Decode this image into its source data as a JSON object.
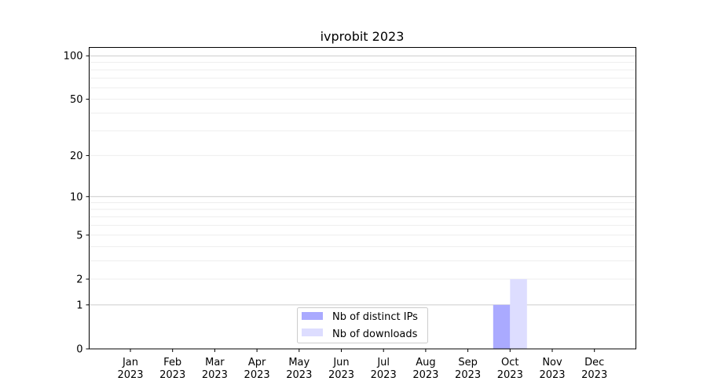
{
  "chart_data": {
    "type": "bar",
    "title": "ivprobit 2023",
    "xlabel": "",
    "ylabel": "",
    "y_scale": "symlog (log of 1+y)",
    "ylim": [
      0,
      116
    ],
    "grid": true,
    "legend_placement": "lower-center",
    "categories": [
      "Jan\n2023",
      "Feb\n2023",
      "Mar\n2023",
      "Apr\n2023",
      "May\n2023",
      "Jun\n2023",
      "Jul\n2023",
      "Aug\n2023",
      "Sep\n2023",
      "Oct\n2023",
      "Nov\n2023",
      "Dec\n2023"
    ],
    "category_labels": [
      [
        "Jan",
        "2023"
      ],
      [
        "Feb",
        "2023"
      ],
      [
        "Mar",
        "2023"
      ],
      [
        "Apr",
        "2023"
      ],
      [
        "May",
        "2023"
      ],
      [
        "Jun",
        "2023"
      ],
      [
        "Jul",
        "2023"
      ],
      [
        "Aug",
        "2023"
      ],
      [
        "Sep",
        "2023"
      ],
      [
        "Oct",
        "2023"
      ],
      [
        "Nov",
        "2023"
      ],
      [
        "Dec",
        "2023"
      ]
    ],
    "y_ticks": [
      0,
      1,
      2,
      5,
      10,
      20,
      50,
      100
    ],
    "y_tick_labels": [
      "0",
      "1",
      "2",
      "5",
      "10",
      "20",
      "50",
      "100"
    ],
    "series": [
      {
        "name": "Nb of distinct IPs",
        "color": "#aaaaff",
        "values": [
          0,
          0,
          0,
          0,
          0,
          0,
          0,
          0,
          0,
          1,
          0,
          0
        ]
      },
      {
        "name": "Nb of downloads",
        "color": "#ddddff",
        "values": [
          0,
          0,
          0,
          0,
          0,
          0,
          0,
          0,
          0,
          2,
          0,
          0
        ]
      }
    ]
  }
}
